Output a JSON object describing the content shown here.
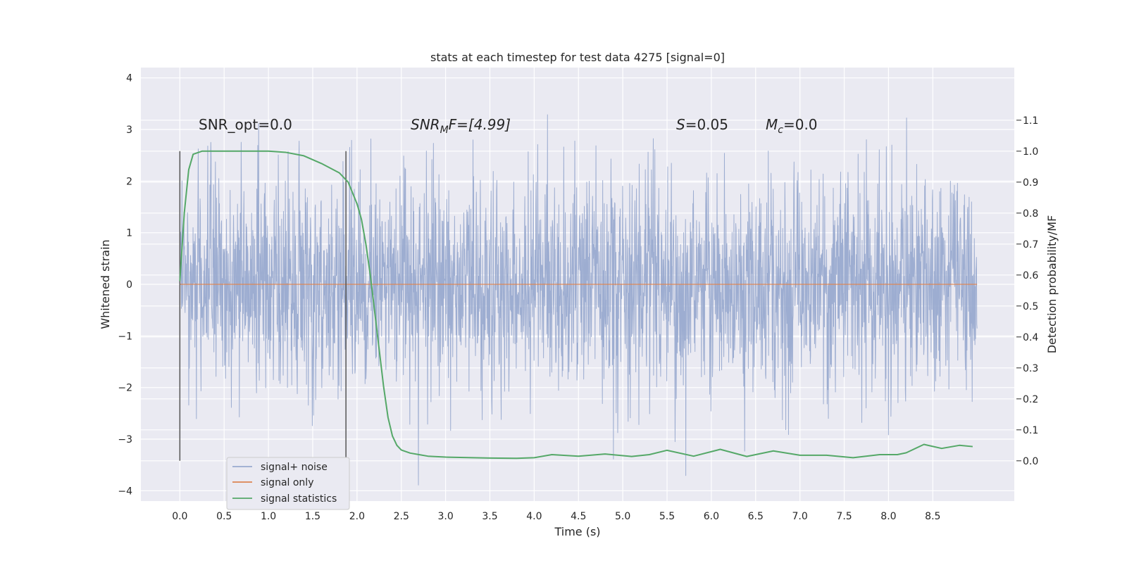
{
  "chart_data": {
    "type": "line",
    "title": "stats at each timestep for test data 4275 [signal=0]",
    "xlabel": "Time (s)",
    "ylabel": "Whitened strain",
    "ylabel_right": "Detection probability/MF",
    "xlim": [
      -0.44,
      9.42
    ],
    "ylim": [
      -4.2,
      4.2
    ],
    "ylim_right": [
      -0.13,
      1.27
    ],
    "xticks": [
      "0.0",
      "0.5",
      "1.0",
      "1.5",
      "2.0",
      "2.5",
      "3.0",
      "3.5",
      "4.0",
      "4.5",
      "5.0",
      "5.5",
      "6.0",
      "6.5",
      "7.0",
      "7.5",
      "8.0",
      "8.5"
    ],
    "yticks": [
      "−4",
      "−3",
      "−2",
      "−1",
      "0",
      "1",
      "2",
      "3",
      "4"
    ],
    "yticks_right": [
      "0.0",
      "0.1",
      "0.2",
      "0.3",
      "0.4",
      "0.5",
      "0.6",
      "0.7",
      "0.8",
      "0.9",
      "1.0",
      "1.1"
    ],
    "grid": true,
    "legend_position": "lower-left",
    "vlines": [
      0.0,
      1.875
    ],
    "annotations": {
      "snr_opt": "SNR_opt=0.0",
      "snr_mf_main": "SNR",
      "snr_mf_sub": "M",
      "snr_mf_tail": "F=[4.99]",
      "s_main": "S",
      "s_tail": "=0.05",
      "mc_main": "M",
      "mc_sub": "c",
      "mc_tail": "=0.0"
    },
    "series": [
      {
        "name": "signal+ noise",
        "color": "#99aacf",
        "x_range": [
          0.0,
          9.0
        ],
        "approx_envelope": [
          -2.3,
          2.3
        ],
        "approx_extremes": [
          -4.0,
          3.6
        ]
      },
      {
        "name": "signal only",
        "color": "#dd8452",
        "x": [
          0.0,
          9.0
        ],
        "y": [
          0.0,
          0.0
        ]
      },
      {
        "name": "signal statistics",
        "color": "#55a868",
        "axis": "right",
        "x": [
          0.0,
          0.05,
          0.1,
          0.15,
          0.25,
          0.5,
          1.0,
          1.2,
          1.4,
          1.6,
          1.8,
          1.9,
          2.0,
          2.05,
          2.1,
          2.15,
          2.2,
          2.25,
          2.3,
          2.35,
          2.4,
          2.45,
          2.5,
          2.6,
          2.7,
          2.8,
          3.0,
          3.5,
          3.8,
          4.0,
          4.2,
          4.5,
          4.8,
          5.1,
          5.3,
          5.5,
          5.8,
          6.1,
          6.4,
          6.7,
          7.0,
          7.3,
          7.6,
          7.9,
          8.1,
          8.2,
          8.4,
          8.6,
          8.8,
          8.95
        ],
        "y": [
          0.58,
          0.8,
          0.94,
          0.99,
          1.0,
          1.0,
          1.0,
          0.996,
          0.985,
          0.96,
          0.93,
          0.9,
          0.83,
          0.78,
          0.7,
          0.6,
          0.48,
          0.36,
          0.24,
          0.14,
          0.08,
          0.05,
          0.035,
          0.025,
          0.02,
          0.015,
          0.012,
          0.009,
          0.008,
          0.01,
          0.02,
          0.015,
          0.022,
          0.014,
          0.02,
          0.034,
          0.015,
          0.037,
          0.014,
          0.032,
          0.018,
          0.018,
          0.01,
          0.02,
          0.02,
          0.026,
          0.053,
          0.04,
          0.05,
          0.046
        ]
      }
    ]
  }
}
